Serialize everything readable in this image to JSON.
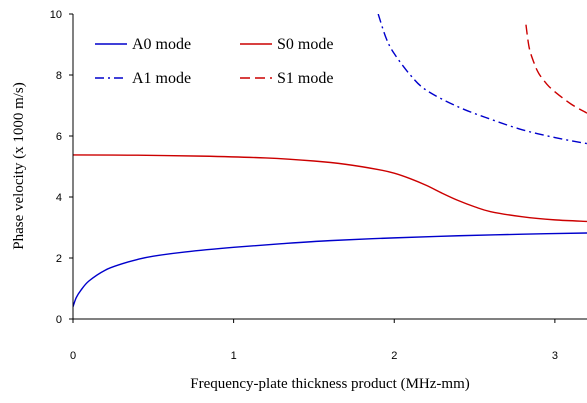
{
  "chart_data": {
    "type": "line",
    "title": "",
    "xlabel": "Frequency-plate thickness product (MHz-mm)",
    "ylabel": "Phase velocity (x 1000 m/s)",
    "xlim": [
      0,
      3.2
    ],
    "ylim": [
      0,
      10
    ],
    "x_ticks": [
      "0",
      "1",
      "2",
      "3"
    ],
    "y_ticks": [
      "0",
      "2",
      "4",
      "6",
      "8",
      "10"
    ],
    "grid": false,
    "legend_position": "top-left",
    "series": [
      {
        "name": "A0 mode",
        "color": "#0000cc",
        "dash": "solid",
        "x": [
          0.0,
          0.02,
          0.05,
          0.1,
          0.2,
          0.3,
          0.4,
          0.5,
          0.7,
          1.0,
          1.3,
          1.6,
          2.0,
          2.4,
          2.8,
          3.2
        ],
        "y": [
          0.4,
          0.7,
          0.95,
          1.25,
          1.6,
          1.8,
          1.95,
          2.06,
          2.2,
          2.35,
          2.47,
          2.57,
          2.66,
          2.73,
          2.78,
          2.82
        ]
      },
      {
        "name": "S0 mode",
        "color": "#cc0000",
        "dash": "solid",
        "x": [
          0.0,
          0.4,
          0.8,
          1.2,
          1.5,
          1.7,
          1.9,
          2.0,
          2.1,
          2.2,
          2.3,
          2.4,
          2.5,
          2.6,
          2.8,
          3.0,
          3.2
        ],
        "y": [
          5.38,
          5.37,
          5.34,
          5.28,
          5.18,
          5.07,
          4.9,
          4.78,
          4.6,
          4.38,
          4.12,
          3.88,
          3.68,
          3.52,
          3.35,
          3.25,
          3.2
        ]
      },
      {
        "name": "A1 mode",
        "color": "#0000cc",
        "dash": "dashdot",
        "x": [
          1.9,
          1.95,
          2.0,
          2.1,
          2.2,
          2.4,
          2.6,
          2.8,
          3.0,
          3.2
        ],
        "y": [
          10.0,
          9.2,
          8.7,
          8.0,
          7.5,
          6.95,
          6.55,
          6.2,
          5.95,
          5.75
        ]
      },
      {
        "name": "S1 mode",
        "color": "#cc0000",
        "dash": "dashed",
        "x": [
          2.82,
          2.84,
          2.87,
          2.9,
          2.95,
          3.0,
          3.1,
          3.2
        ],
        "y": [
          9.65,
          8.9,
          8.4,
          8.05,
          7.7,
          7.45,
          7.05,
          6.75
        ]
      }
    ]
  }
}
